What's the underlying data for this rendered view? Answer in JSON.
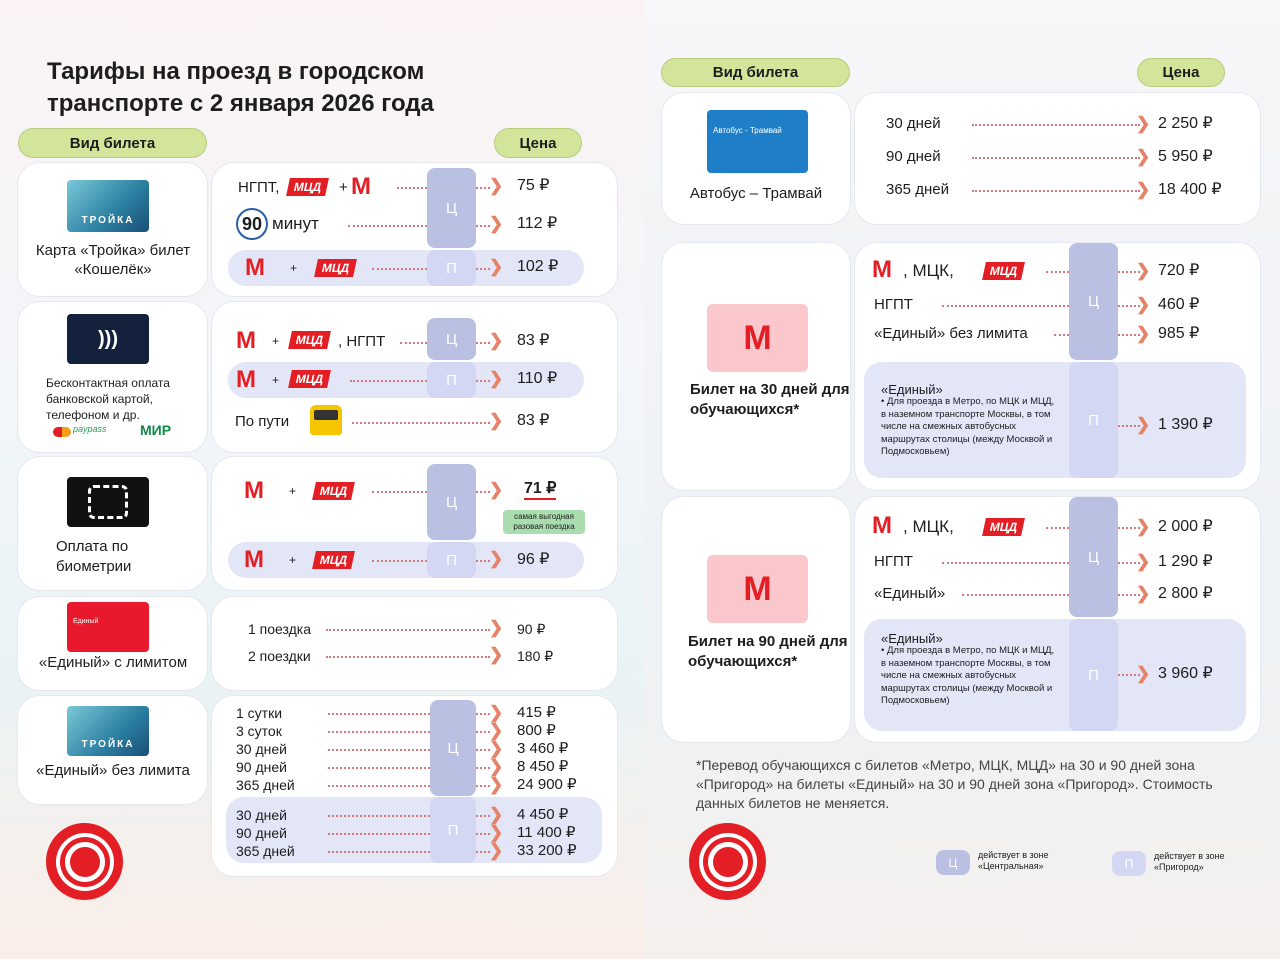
{
  "title": "Тарифы на проезд в городском транспорте с 2 января 2026 года",
  "headers": {
    "ticket_type": "Вид билета",
    "price": "Цена"
  },
  "logos": {
    "mcd": "МЦД",
    "metro": "М",
    "troika": "ТРОЙКА",
    "mir": "МИР",
    "paypass": "paypass",
    "edinyi_card": "Единый",
    "bus_tram_card": "Автобус - Трамвай"
  },
  "zones": {
    "central": "Ц",
    "suburb": "П"
  },
  "left": {
    "troika_koshelek": {
      "name": "Карта «Тройка» билет «Кошелёк»",
      "rows": [
        {
          "label": "НГПТ,",
          "extra": "+",
          "price": "75 ₽"
        },
        {
          "label": "минут",
          "num": "90",
          "price": "112 ₽"
        },
        {
          "label": "+",
          "price": "102 ₽"
        }
      ]
    },
    "contactless": {
      "name": "Бесконтактная оплата банковской картой, телефоном и др.",
      "rows": [
        {
          "label": ", НГПТ",
          "plus": "+",
          "price": "83 ₽"
        },
        {
          "label": "+",
          "price": "110 ₽"
        },
        {
          "label": "По пути",
          "price": "83 ₽"
        }
      ]
    },
    "biometry": {
      "name": "Оплата по биометрии",
      "rows": [
        {
          "label": "+",
          "price": "71 ₽",
          "badge": "самая выгодная разовая поездка"
        },
        {
          "label": "+",
          "price": "96 ₽"
        }
      ]
    },
    "edinyi_limit": {
      "name": "«Единый» с лимитом",
      "rows": [
        {
          "label": "1 поездка",
          "price": "90 ₽"
        },
        {
          "label": "2 поездки",
          "price": "180 ₽"
        }
      ]
    },
    "edinyi_unlimited": {
      "name": "«Единый» без лимита",
      "central": [
        {
          "label": "1 сутки",
          "price": "415 ₽"
        },
        {
          "label": "3 суток",
          "price": "800 ₽"
        },
        {
          "label": "30 дней",
          "price": "3 460 ₽"
        },
        {
          "label": "90 дней",
          "price": "8 450 ₽"
        },
        {
          "label": "365 дней",
          "price": "24 900 ₽"
        }
      ],
      "suburb": [
        {
          "label": "30 дней",
          "price": "4 450 ₽"
        },
        {
          "label": "90 дней",
          "price": "11 400 ₽"
        },
        {
          "label": "365 дней",
          "price": "33 200 ₽"
        }
      ]
    }
  },
  "right": {
    "bus_tram": {
      "name": "Автобус – Трамвай",
      "rows": [
        {
          "label": "30 дней",
          "price": "2 250 ₽"
        },
        {
          "label": "90 дней",
          "price": "5 950 ₽"
        },
        {
          "label": "365 дней",
          "price": "18 400 ₽"
        }
      ]
    },
    "student30": {
      "name": "Билет на 30 дней для обучающихся*",
      "rows": [
        {
          "label": ", МЦК,",
          "price": "720 ₽"
        },
        {
          "label": "НГПТ",
          "price": "460 ₽"
        },
        {
          "label": "«Единый» без лимита",
          "price": "985 ₽"
        }
      ],
      "suburb": {
        "title": "«Единый»",
        "desc": "• Для проезда в Метро, по МЦК и МЦД, в наземном транспорте Москвы, в том числе на смежных автобусных маршрутах столицы (между Москвой и Подмосковьем)",
        "price": "1 390 ₽"
      }
    },
    "student90": {
      "name": "Билет на 90 дней для обучающихся*",
      "rows": [
        {
          "label": ", МЦК,",
          "price": "2 000 ₽"
        },
        {
          "label": "НГПТ",
          "price": "1 290 ₽"
        },
        {
          "label": "«Единый»",
          "price": "2 800 ₽"
        }
      ],
      "suburb": {
        "title": "«Единый»",
        "desc": "• Для проезда в Метро, по МЦК и МЦД, в наземном транспорте Москвы, в том числе на смежных автобусных маршрутах столицы (между Москвой и Подмосковьем)",
        "price": "3 960 ₽"
      }
    },
    "footnote": "*Перевод обучающихся с билетов «Метро, МЦК, МЦД» на 30 и 90 дней зона «Пригород» на билеты «Единый» на 30 и 90 дней зона «Пригород». Стоимость данных билетов не меняется.",
    "legend": [
      {
        "zone": "Ц",
        "text": "действует в зоне «Центральная»"
      },
      {
        "zone": "П",
        "text": "действует в зоне «Пригород»"
      }
    ]
  },
  "colors": {
    "accent_red": "#e31e24",
    "header_green": "#d3e59a",
    "zone_central": "#b9c0e2",
    "zone_suburb": "#d3d7f3",
    "highlight": "#e3e6f6"
  }
}
